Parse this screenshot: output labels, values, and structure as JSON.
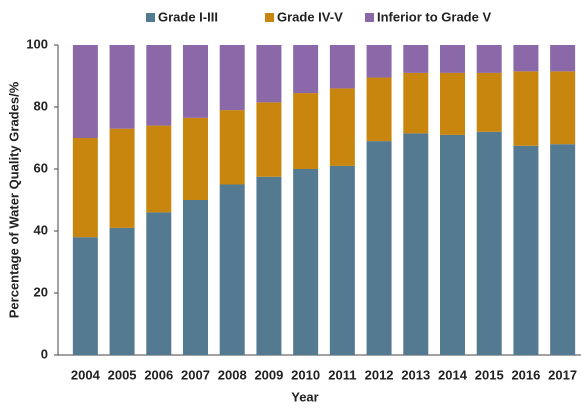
{
  "chart_data": {
    "type": "stacked_bar",
    "xlabel": "Year",
    "ylabel": "Percentage of Water Quality Grades/%",
    "categories": [
      "2004",
      "2005",
      "2006",
      "2007",
      "2008",
      "2009",
      "2010",
      "2011",
      "2012",
      "2013",
      "2014",
      "2015",
      "2016",
      "2017"
    ],
    "series": [
      {
        "name": "Grade I-III",
        "color": "#547a91",
        "values": [
          38,
          41,
          46,
          50,
          55,
          57.5,
          60,
          61,
          69,
          71.5,
          71,
          72,
          67.5,
          68
        ]
      },
      {
        "name": "Grade IV-V",
        "color": "#c8860f",
        "values": [
          32,
          32,
          28,
          26.5,
          24,
          24,
          24.5,
          25,
          20.5,
          19.5,
          20,
          19,
          24,
          23.5
        ]
      },
      {
        "name": "Inferior to Grade V",
        "color": "#8b68a8",
        "values": [
          30,
          27,
          26,
          23.5,
          21,
          18.5,
          15.5,
          14,
          10.5,
          9,
          9,
          9,
          8.5,
          8.5
        ]
      }
    ],
    "ylim": [
      0,
      100
    ],
    "yticks": [
      0,
      20,
      40,
      60,
      80,
      100
    ],
    "grid": false,
    "legend": "top"
  }
}
